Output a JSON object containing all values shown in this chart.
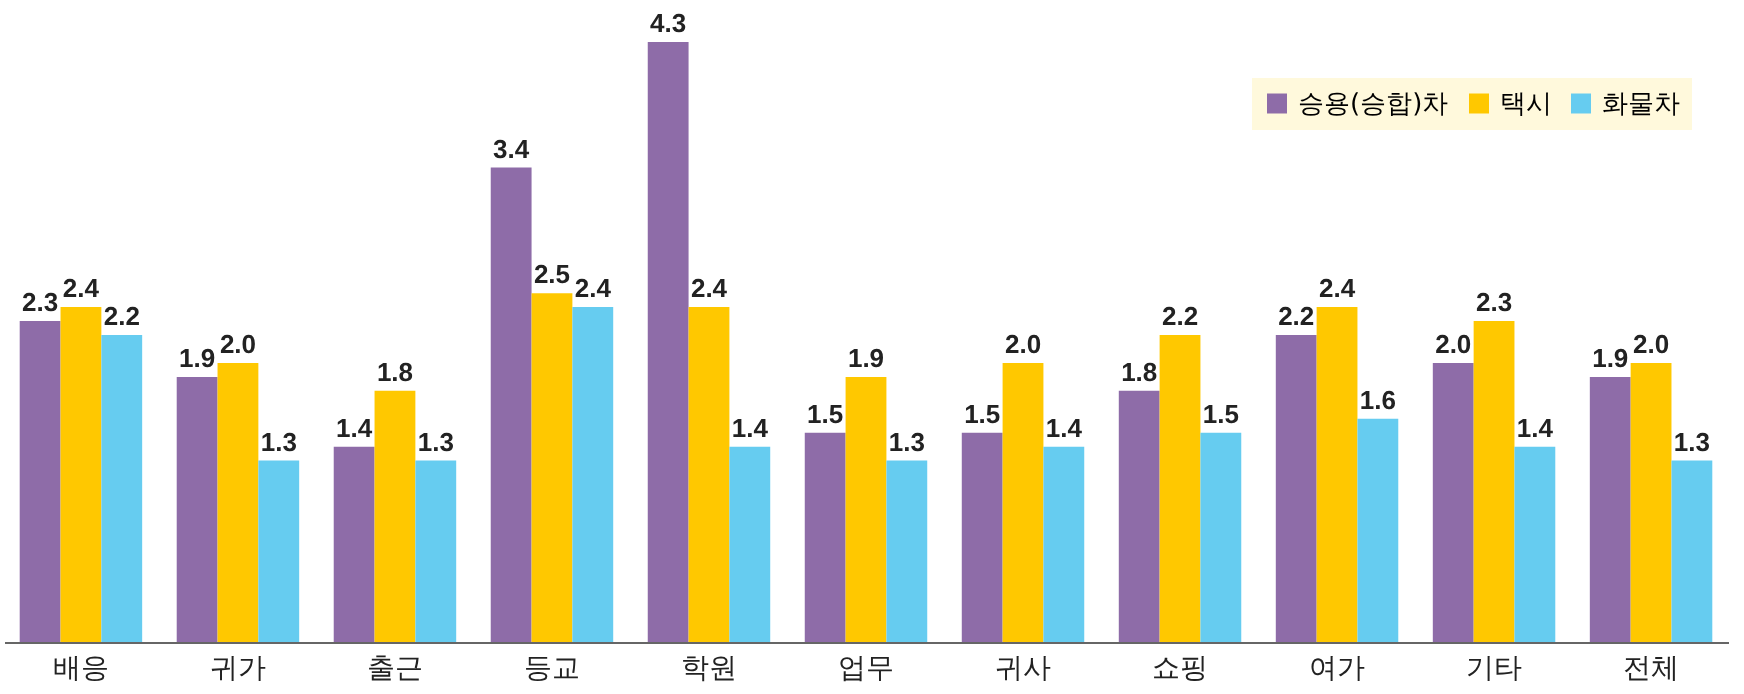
{
  "chart_data": {
    "type": "bar",
    "categories": [
      "배응",
      "귀가",
      "출근",
      "등교",
      "학원",
      "업무",
      "귀사",
      "쇼핑",
      "여가",
      "기타",
      "전체"
    ],
    "series": [
      {
        "name": "승용(승합)차",
        "color": "#8e6ca8",
        "values": [
          2.3,
          1.9,
          1.4,
          3.4,
          4.3,
          1.5,
          1.5,
          1.8,
          2.2,
          2.0,
          1.9
        ],
        "value_labels": [
          "2.3",
          "1.9",
          "1.4",
          "3.4",
          "4.3",
          "1.5",
          "1.5",
          "1.8",
          "2.2",
          "2.0",
          "1.9"
        ]
      },
      {
        "name": "택시",
        "color": "#ffc800",
        "values": [
          2.4,
          2.0,
          1.8,
          2.5,
          2.4,
          1.9,
          2.0,
          2.2,
          2.4,
          2.3,
          2.0
        ],
        "value_labels": [
          "2.4",
          "2.0",
          "1.8",
          "2.5",
          "2.4",
          "1.9",
          "2.0",
          "2.2",
          "2.4",
          "2.3",
          "2.0"
        ]
      },
      {
        "name": "화물차",
        "color": "#66ccf0",
        "values": [
          2.2,
          1.3,
          1.3,
          2.4,
          1.4,
          1.3,
          1.4,
          1.5,
          1.6,
          1.4,
          1.3
        ],
        "value_labels": [
          "2.2",
          "1.3",
          "1.3",
          "2.4",
          "1.4",
          "1.3",
          "1.4",
          "1.5",
          "1.6",
          "1.4",
          "1.3"
        ]
      }
    ],
    "legend": "top right"
  }
}
